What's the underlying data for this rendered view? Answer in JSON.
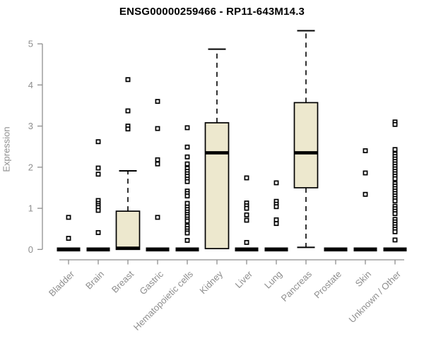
{
  "chart_data": {
    "type": "boxplot",
    "title": "ENSG00000259466 - RP11-643M14.3",
    "ylabel": "Expression",
    "xlabel": "",
    "ylim": [
      0,
      5
    ],
    "yticks": [
      0,
      1,
      2,
      3,
      4,
      5
    ],
    "grid": false,
    "legend": "none",
    "colors": {
      "box_fill": "#EDE8CE",
      "box_stroke": "#000000",
      "median": "#000000",
      "outlier_stroke": "#000000",
      "outlier_fill": "#ffffff",
      "axis": "#8e8e8e",
      "tick_text": "#8e8e8e",
      "title_text": "#000000"
    },
    "categories": [
      "Bladder",
      "Brain",
      "Breast",
      "Gastric",
      "Hematopoietic cells",
      "Kidney",
      "Liver",
      "Lung",
      "Pancreas",
      "Prostate",
      "Skin",
      "Unknown / Other"
    ],
    "series": [
      {
        "category": "Bladder",
        "q1": 0,
        "median": 0,
        "q3": 0,
        "whisker_low": 0,
        "whisker_high": 0,
        "outliers": [
          0.78,
          0.27
        ]
      },
      {
        "category": "Brain",
        "q1": 0,
        "median": 0,
        "q3": 0,
        "whisker_low": 0,
        "whisker_high": 0,
        "outliers": [
          2.62,
          1.98,
          1.83,
          1.19,
          1.12,
          1.07,
          1.02,
          0.95,
          0.41
        ]
      },
      {
        "category": "Breast",
        "q1": 0,
        "median": 0.03,
        "q3": 0.93,
        "whisker_low": 0,
        "whisker_high": 1.91,
        "outliers": [
          4.13,
          3.37,
          3.0,
          2.93
        ]
      },
      {
        "category": "Gastric",
        "q1": 0,
        "median": 0,
        "q3": 0,
        "whisker_low": 0,
        "whisker_high": 0,
        "outliers": [
          3.6,
          2.94,
          2.18,
          2.08,
          0.78
        ]
      },
      {
        "category": "Hematopoietic cells",
        "q1": 0,
        "median": 0,
        "q3": 0,
        "whisker_low": 0,
        "whisker_high": 0,
        "outliers": [
          2.96,
          2.49,
          2.25,
          2.08,
          1.97,
          1.9,
          1.84,
          1.78,
          1.71,
          1.65,
          1.42,
          1.36,
          1.3,
          1.12,
          1.03,
          0.97,
          0.91,
          0.85,
          0.8,
          0.74,
          0.69,
          0.57,
          0.51,
          0.45,
          0.4,
          0.22
        ]
      },
      {
        "category": "Kidney",
        "q1": 0.02,
        "median": 2.35,
        "q3": 3.08,
        "whisker_low": 0.02,
        "whisker_high": 4.87,
        "outliers": []
      },
      {
        "category": "Liver",
        "q1": 0,
        "median": 0,
        "q3": 0,
        "whisker_low": 0,
        "whisker_high": 0,
        "outliers": [
          1.74,
          1.13,
          1.06,
          1.0,
          0.84,
          0.71,
          0.17
        ]
      },
      {
        "category": "Lung",
        "q1": 0,
        "median": 0,
        "q3": 0,
        "whisker_low": 0,
        "whisker_high": 0,
        "outliers": [
          1.62,
          1.17,
          1.1,
          1.04,
          0.72,
          0.63
        ]
      },
      {
        "category": "Pancreas",
        "q1": 1.5,
        "median": 2.35,
        "q3": 3.57,
        "whisker_low": 0.05,
        "whisker_high": 5.32,
        "outliers": []
      },
      {
        "category": "Prostate",
        "q1": 0,
        "median": 0,
        "q3": 0,
        "whisker_low": 0,
        "whisker_high": 0,
        "outliers": []
      },
      {
        "category": "Skin",
        "q1": 0,
        "median": 0,
        "q3": 0,
        "whisker_low": 0,
        "whisker_high": 0,
        "outliers": [
          2.4,
          1.86,
          1.34
        ]
      },
      {
        "category": "Unknown / Other",
        "q1": 0,
        "median": 0,
        "q3": 0,
        "whisker_low": 0,
        "whisker_high": 0,
        "outliers": [
          3.1,
          3.04,
          2.43,
          2.32,
          2.26,
          2.2,
          2.14,
          2.08,
          2.02,
          1.96,
          1.9,
          1.84,
          1.78,
          1.72,
          1.6,
          1.54,
          1.48,
          1.42,
          1.36,
          1.3,
          1.24,
          1.18,
          1.05,
          0.99,
          0.93,
          0.87,
          0.73,
          0.67,
          0.61,
          0.55,
          0.49,
          0.43,
          0.23
        ]
      }
    ]
  }
}
